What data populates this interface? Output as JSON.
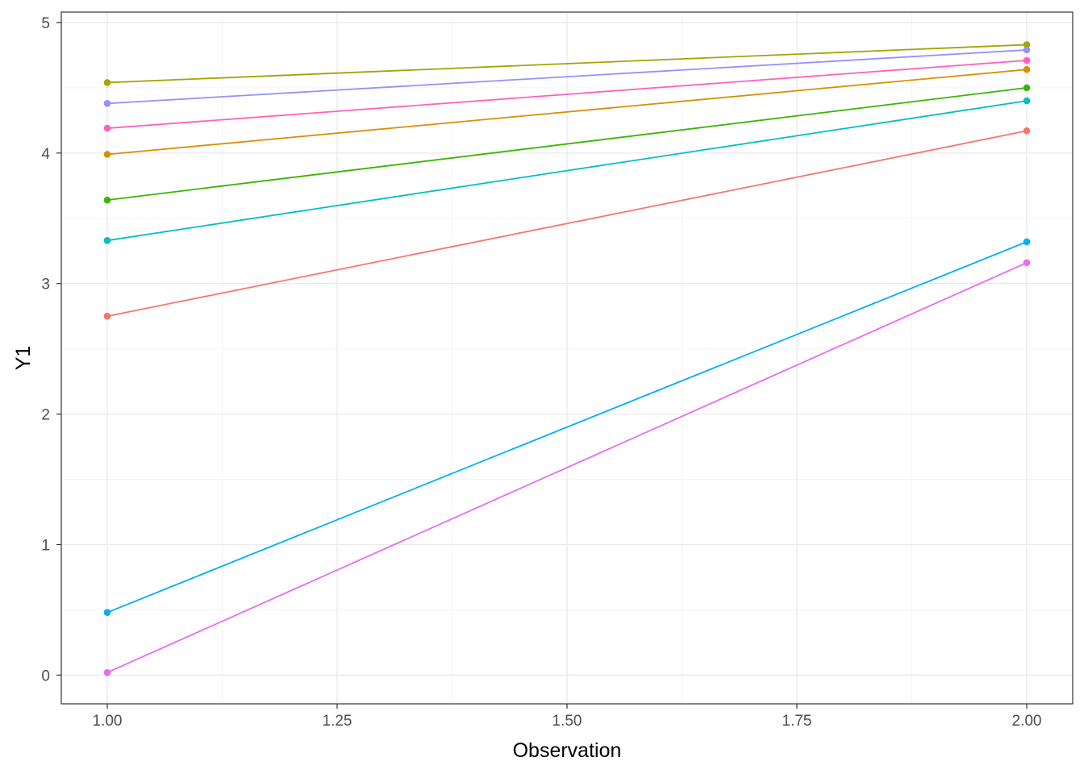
{
  "chart_data": {
    "type": "line",
    "xlabel": "Observation",
    "ylabel": "Y1",
    "xlim": [
      0.95,
      2.05
    ],
    "ylim": [
      -0.22,
      5.08
    ],
    "x_ticks": [
      1.0,
      1.25,
      1.5,
      1.75,
      2.0
    ],
    "x_tick_labels": [
      "1.00",
      "1.25",
      "1.50",
      "1.75",
      "2.00"
    ],
    "x_minor_ticks": [
      1.125,
      1.375,
      1.625,
      1.875
    ],
    "y_ticks": [
      0,
      1,
      2,
      3,
      4,
      5
    ],
    "y_tick_labels": [
      "0",
      "1",
      "2",
      "3",
      "4",
      "5"
    ],
    "y_minor_ticks": [
      0.5,
      1.5,
      2.5,
      3.5,
      4.5
    ],
    "grid": true,
    "legend": "none",
    "x": [
      1,
      2
    ],
    "series": [
      {
        "color": "#F8766D",
        "values": [
          2.75,
          4.17
        ]
      },
      {
        "color": "#D89000",
        "values": [
          3.99,
          4.64
        ]
      },
      {
        "color": "#A3A500",
        "values": [
          4.54,
          4.83
        ]
      },
      {
        "color": "#39B600",
        "values": [
          3.64,
          4.5
        ]
      },
      {
        "color": "#00BFC4",
        "values": [
          3.33,
          4.4
        ]
      },
      {
        "color": "#00B0F6",
        "values": [
          0.48,
          3.32
        ]
      },
      {
        "color": "#9590FF",
        "values": [
          4.38,
          4.79
        ]
      },
      {
        "color": "#E76BF3",
        "values": [
          0.02,
          3.16
        ]
      },
      {
        "color": "#FF62BC",
        "values": [
          4.19,
          4.71
        ]
      }
    ]
  },
  "colors": {
    "panel_border": "#333333",
    "major_grid": "#ebebeb",
    "minor_grid": "#f4f4f4",
    "tick_text": "#4d4d4d",
    "axis_title": "#000000"
  }
}
